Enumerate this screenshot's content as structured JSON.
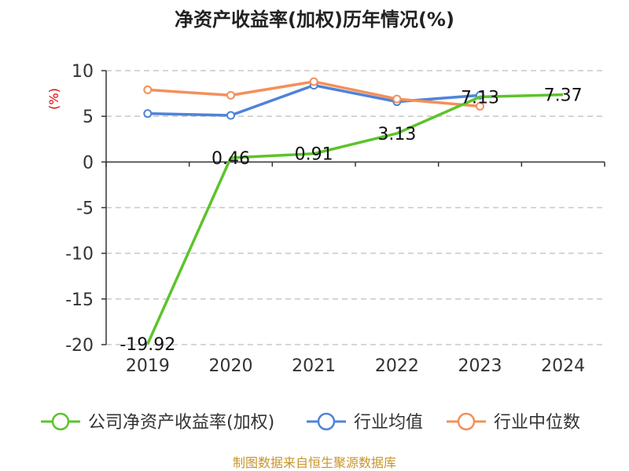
{
  "chart_data": {
    "type": "line",
    "title": "净资产收益率(加权)历年情况(%)",
    "ylabel": "(%)",
    "xlabel": "",
    "categories": [
      "2019",
      "2020",
      "2021",
      "2022",
      "2023",
      "2024"
    ],
    "ylim": [
      -20,
      10
    ],
    "yticks": [
      10,
      5,
      0,
      -5,
      -10,
      -15,
      -20
    ],
    "grid": true,
    "legend_position": "bottom",
    "series": [
      {
        "name": "公司净资产收益率(加权)",
        "color": "#5cc42b",
        "values": [
          -19.92,
          0.46,
          0.91,
          3.13,
          7.13,
          7.37
        ],
        "labels": [
          "-19.92",
          "0.46",
          "0.91",
          "3.13",
          "7.13",
          "7.37"
        ]
      },
      {
        "name": "行业均值",
        "color": "#4f83d9",
        "values": [
          5.3,
          5.1,
          8.4,
          6.6,
          7.3,
          null
        ]
      },
      {
        "name": "行业中位数",
        "color": "#f4905a",
        "values": [
          7.9,
          7.3,
          8.8,
          6.9,
          6.1,
          null
        ]
      }
    ],
    "source": "制图数据来自恒生聚源数据库"
  }
}
